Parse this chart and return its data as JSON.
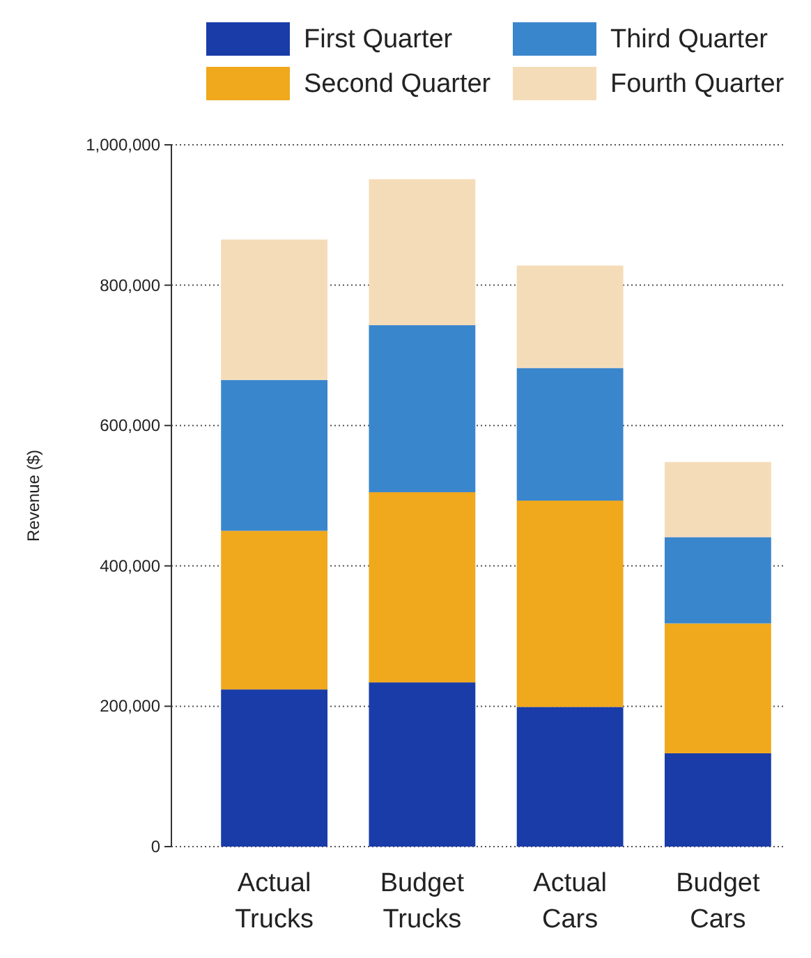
{
  "chart_data": {
    "type": "bar",
    "stacked": true,
    "ylabel": "Revenue ($)",
    "categories": [
      "Actual Trucks",
      "Budget Trucks",
      "Actual Cars",
      "Budget Cars"
    ],
    "series": [
      {
        "name": "First Quarter",
        "color": "#1a3ca8",
        "values": [
          224000,
          234000,
          199000,
          133000
        ]
      },
      {
        "name": "Second Quarter",
        "color": "#f0a81c",
        "values": [
          226000,
          271000,
          294000,
          185000
        ]
      },
      {
        "name": "Third Quarter",
        "color": "#3a86cc",
        "values": [
          215000,
          238000,
          189000,
          123000
        ]
      },
      {
        "name": "Fourth Quarter",
        "color": "#f5dcb8",
        "values": [
          200000,
          208000,
          146000,
          107000
        ]
      }
    ],
    "ylim": [
      0,
      1000000
    ],
    "yticks": [
      {
        "value": 0,
        "label": "0"
      },
      {
        "value": 200000,
        "label": "200,000"
      },
      {
        "value": 400000,
        "label": "400,000"
      },
      {
        "value": 600000,
        "label": "600,000"
      },
      {
        "value": 800000,
        "label": "800,000"
      },
      {
        "value": 1000000,
        "label": "1,000,000"
      }
    ],
    "grid": "y",
    "legend": "top"
  }
}
